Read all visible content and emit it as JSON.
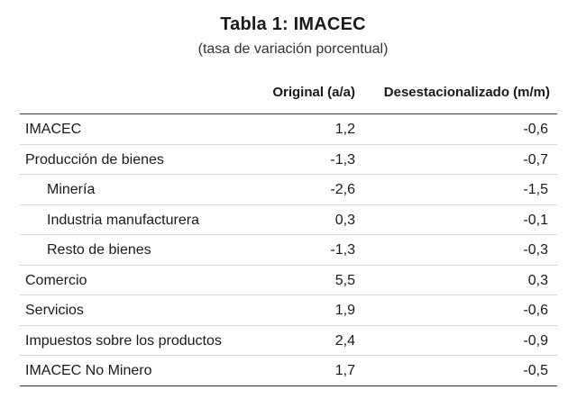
{
  "title": "Tabla 1:  IMACEC",
  "subtitle": "(tasa de variación porcentual)",
  "columns": {
    "original": "Original (a/a)",
    "desestacionalizado": "Desestacionalizado (m/m)"
  },
  "rows": [
    {
      "label": "IMACEC",
      "original": "1,2",
      "desestacionalizado": "-0,6"
    },
    {
      "label": "Producción de bienes",
      "original": "-1,3",
      "desestacionalizado": "-0,7"
    },
    {
      "label": "Minería",
      "original": "-2,6",
      "desestacionalizado": "-1,5"
    },
    {
      "label": "Industria manufacturera",
      "original": "0,3",
      "desestacionalizado": "-0,1"
    },
    {
      "label": "Resto de bienes",
      "original": "-1,3",
      "desestacionalizado": "-0,3"
    },
    {
      "label": "Comercio",
      "original": "5,5",
      "desestacionalizado": "0,3"
    },
    {
      "label": "Servicios",
      "original": "1,9",
      "desestacionalizado": "-0,6"
    },
    {
      "label": "Impuestos sobre los productos",
      "original": "2,4",
      "desestacionalizado": "-0,9"
    },
    {
      "label": "IMACEC No Minero",
      "original": "1,7",
      "desestacionalizado": "-0,5"
    }
  ]
}
